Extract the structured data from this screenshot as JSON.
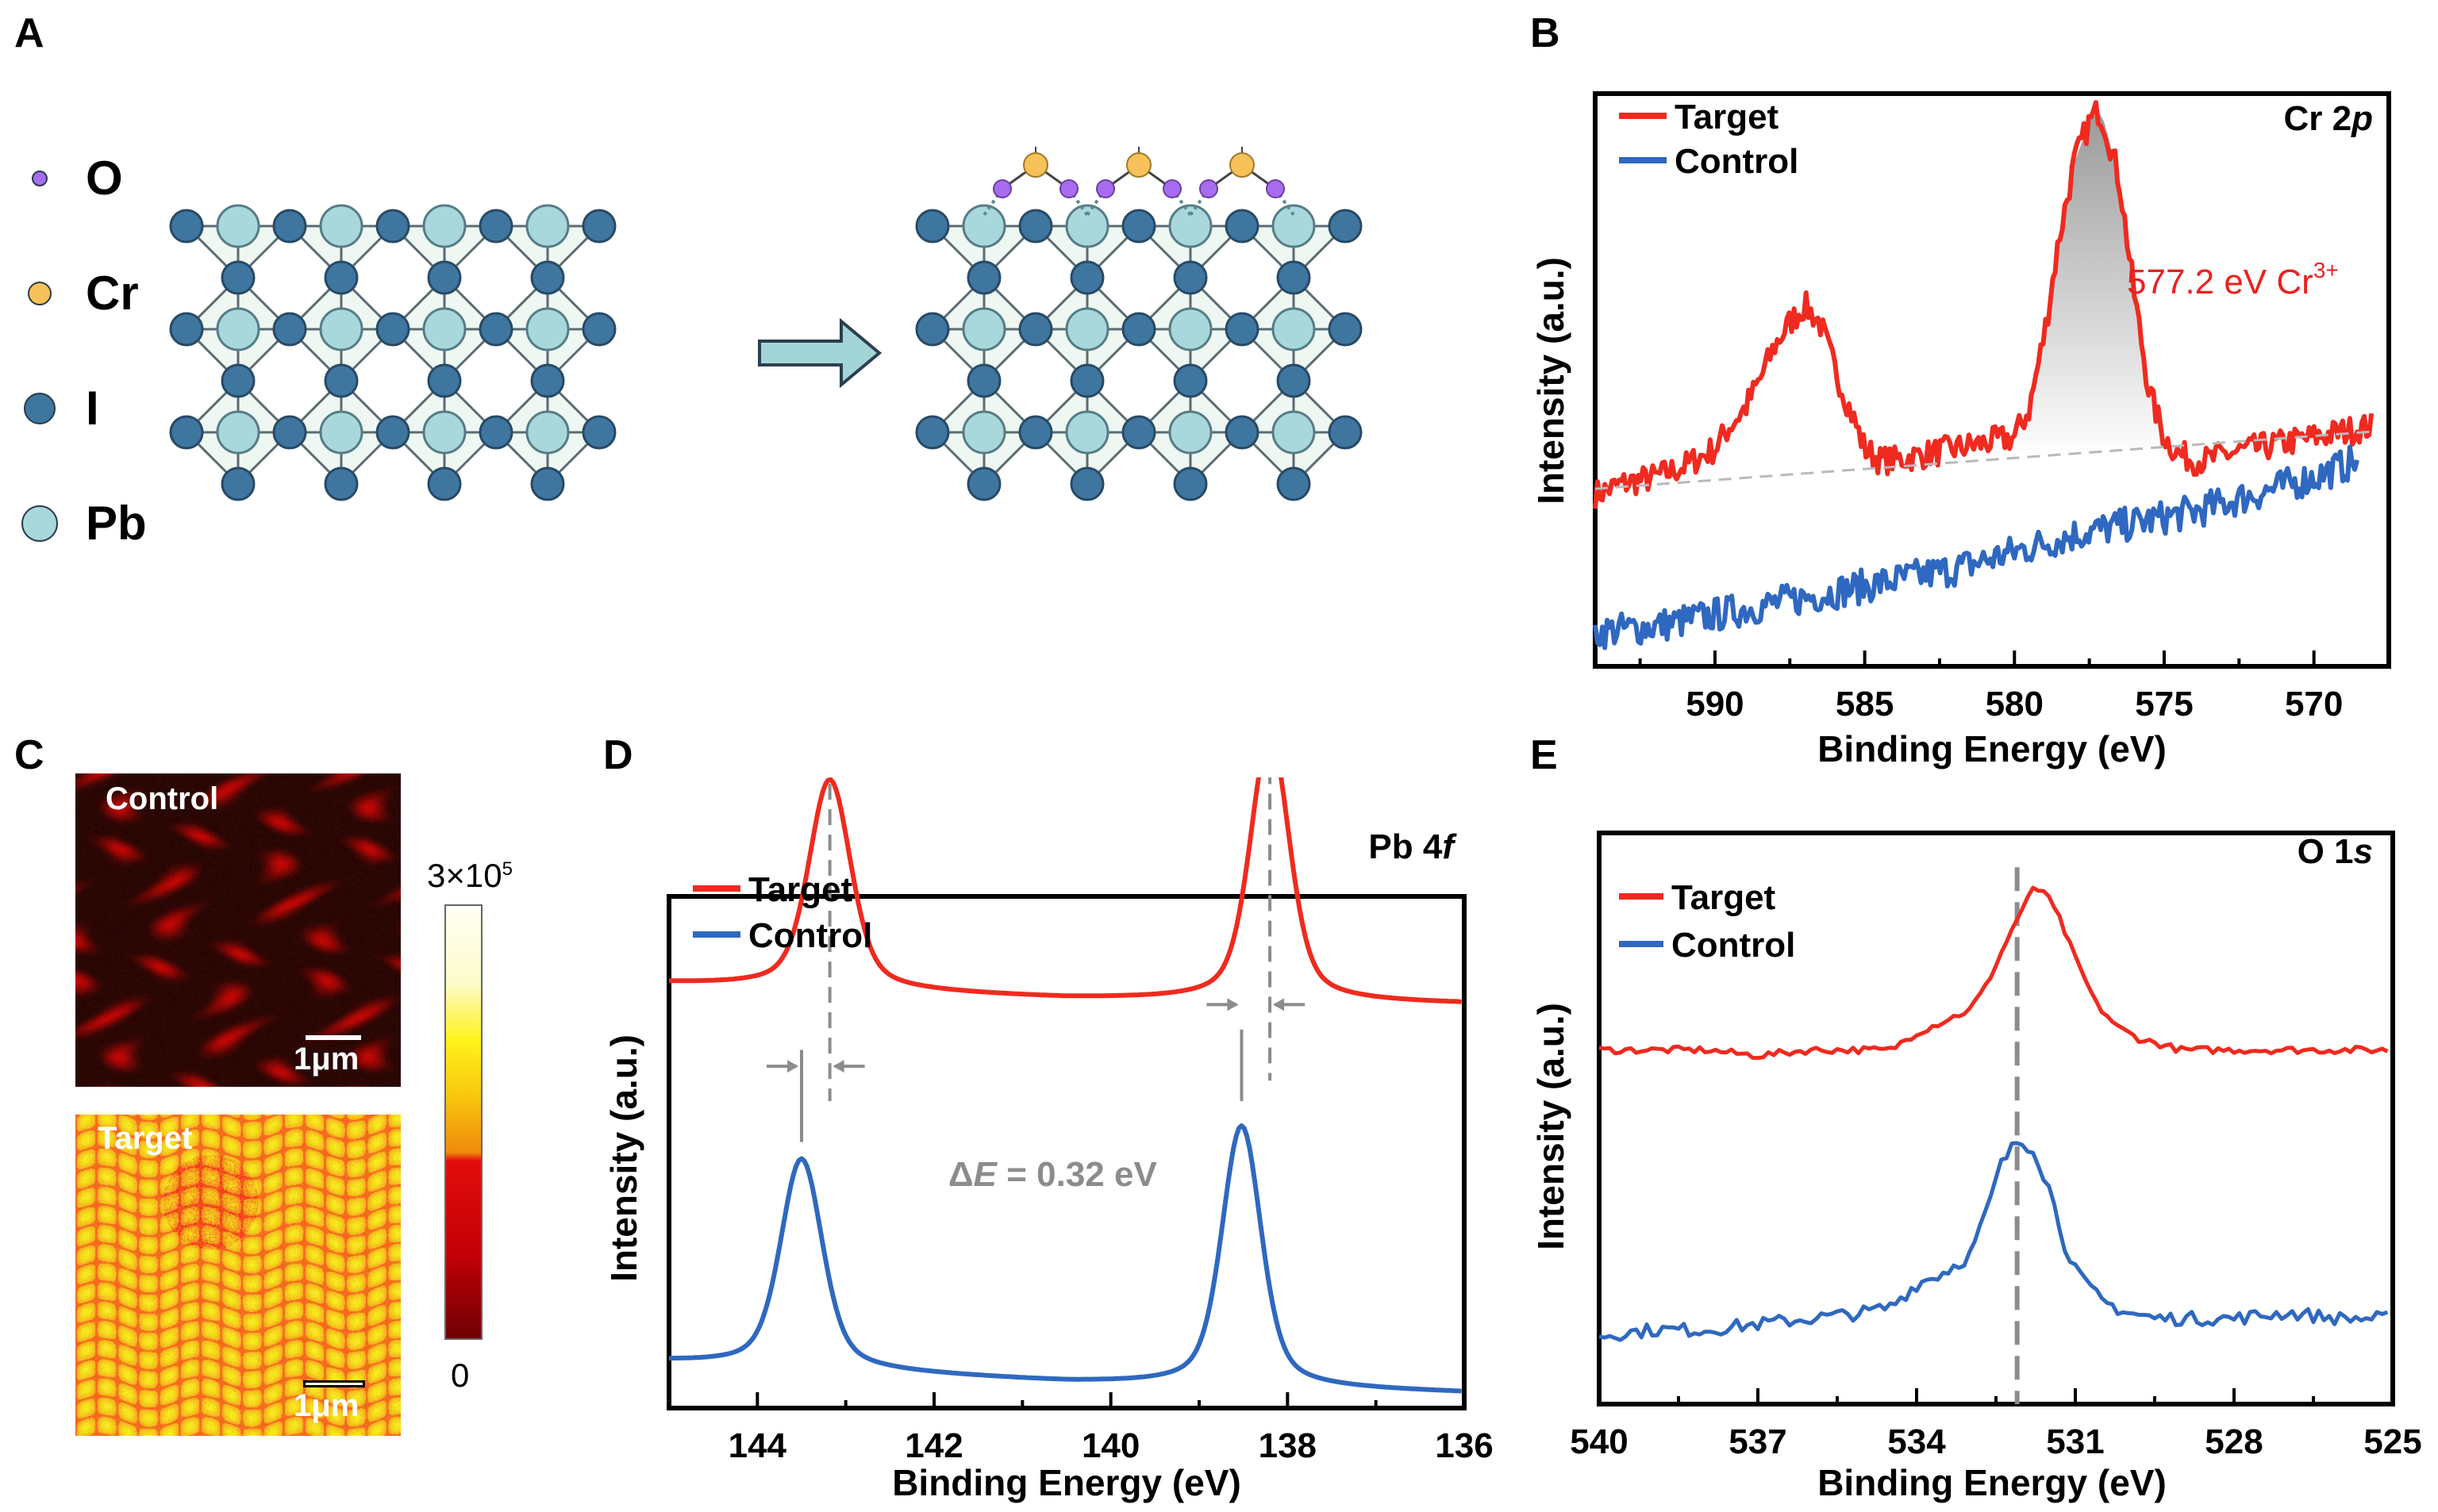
{
  "figure": {
    "panel_labels": {
      "a": "A",
      "b": "B",
      "c": "C",
      "d": "D",
      "e": "E"
    }
  },
  "panel_a": {
    "legend": [
      {
        "symbol": "O",
        "color": "#a86cf0",
        "name": "oxygen-atom"
      },
      {
        "symbol": "Cr",
        "color": "#f7c25a",
        "name": "chromium-atom"
      },
      {
        "symbol": "I",
        "color": "#3f76a0",
        "name": "iodine-atom"
      },
      {
        "symbol": "Pb",
        "color": "#a9d8dc",
        "name": "lead-atom"
      }
    ],
    "arrow_color": "#a3d4d6",
    "lattice_fill": "#eef7f1"
  },
  "panel_c": {
    "control_label": "Control",
    "target_label": "Target",
    "scale_bar": "1μm",
    "colorbar_max_base": "3×10",
    "colorbar_max_exp": "5",
    "colorbar_min": "0"
  },
  "chart_data": [
    {
      "id": "B",
      "type": "line",
      "title": "Cr 2p",
      "title_main": "Cr 2",
      "title_italic": "p",
      "xlabel": "Binding Energy (eV)",
      "ylabel": "Intensity (a.u.)",
      "xlim": [
        594,
        567.5
      ],
      "xticks": [
        590,
        585,
        580,
        575,
        570
      ],
      "minor_step": 2.5,
      "grid": false,
      "legend": "top-left",
      "annotation": {
        "text": "577.2 eV Cr",
        "sup": "3+",
        "x": 577.2,
        "color": "#e8221f"
      },
      "series": [
        {
          "name": "Target",
          "color": "#f02a1f",
          "x": [
            594,
            593,
            592,
            591,
            590,
            589.5,
            589,
            588.5,
            588,
            587.5,
            587,
            586.5,
            586,
            585.5,
            585,
            584.5,
            584,
            583,
            582,
            581,
            580,
            579.5,
            579,
            578.5,
            578,
            577.5,
            577.2,
            577,
            576.5,
            576,
            575.5,
            575,
            574.5,
            574,
            573.5,
            573,
            572,
            571,
            570,
            569,
            568
          ],
          "y": [
            0.3,
            0.32,
            0.33,
            0.35,
            0.38,
            0.42,
            0.45,
            0.5,
            0.56,
            0.6,
            0.63,
            0.6,
            0.52,
            0.45,
            0.38,
            0.36,
            0.36,
            0.37,
            0.38,
            0.39,
            0.4,
            0.45,
            0.58,
            0.75,
            0.88,
            0.95,
            0.97,
            0.95,
            0.85,
            0.65,
            0.48,
            0.4,
            0.37,
            0.36,
            0.36,
            0.37,
            0.38,
            0.39,
            0.4,
            0.41,
            0.42
          ],
          "noise": 0.025
        },
        {
          "name": "Control",
          "color": "#2f68c0",
          "x": [
            594,
            592,
            590,
            588,
            586,
            584,
            582,
            580,
            578,
            576,
            574,
            572,
            570,
            568.5
          ],
          "y": [
            0.06,
            0.07,
            0.09,
            0.11,
            0.13,
            0.15,
            0.17,
            0.2,
            0.23,
            0.25,
            0.27,
            0.3,
            0.33,
            0.36
          ],
          "noise": 0.03
        },
        {
          "name": "Baseline",
          "color": "#b9b9b9",
          "dashed": true,
          "x": [
            594,
            568
          ],
          "y": [
            0.31,
            0.41
          ]
        }
      ]
    },
    {
      "id": "D",
      "type": "line",
      "title": "Pb 4f",
      "title_main": "Pb 4",
      "title_italic": "f",
      "xlabel": "Binding Energy (eV)",
      "ylabel": "Intensity (a.u.)",
      "xlim": [
        145,
        136
      ],
      "xticks": [
        144,
        142,
        140,
        138,
        136
      ],
      "minor_step": 1,
      "grid": false,
      "legend": "top-left",
      "annotation": {
        "text_delta": "Δ",
        "text_e": "E",
        "text_rest": " = 0.32 eV",
        "color": "#8c8c8c"
      },
      "series": [
        {
          "name": "Target",
          "color": "#f02a1f",
          "offset": 0.4,
          "peaks": [
            {
              "center": 143.18,
              "height": 0.41,
              "width": 0.32
            },
            {
              "center": 138.2,
              "height": 0.52,
              "width": 0.3
            }
          ],
          "baseline": [
            0.43,
            0.4,
            0.39
          ]
        },
        {
          "name": "Control",
          "color": "#2f68c0",
          "offset": 0.0,
          "peaks": [
            {
              "center": 143.5,
              "height": 0.41,
              "width": 0.32
            },
            {
              "center": 138.52,
              "height": 0.51,
              "width": 0.3
            }
          ],
          "baseline": [
            0.09,
            0.05,
            0.03
          ]
        }
      ],
      "reference_lines": [
        143.18,
        138.2,
        143.5,
        138.52
      ]
    },
    {
      "id": "E",
      "type": "line",
      "title": "O 1s",
      "title_main": "O 1",
      "title_italic": "s",
      "xlabel": "Binding Energy (eV)",
      "ylabel": "Intensity (a.u.)",
      "xlim": [
        540,
        525
      ],
      "xticks": [
        540,
        537,
        534,
        531,
        528,
        525
      ],
      "minor_step": 1.5,
      "grid": false,
      "legend": "top-left",
      "reference_line": 532.1,
      "series": [
        {
          "name": "Target",
          "color": "#f02a1f",
          "x": [
            540,
            539,
            538,
            537,
            536,
            535,
            534.5,
            534,
            533.5,
            533,
            532.7,
            532.4,
            532.1,
            531.8,
            531.6,
            531.3,
            531,
            530.6,
            530.2,
            529.8,
            529.4,
            529,
            528,
            527,
            526,
            525
          ],
          "y": [
            0.62,
            0.62,
            0.62,
            0.61,
            0.62,
            0.62,
            0.62,
            0.65,
            0.67,
            0.69,
            0.73,
            0.79,
            0.85,
            0.9,
            0.9,
            0.85,
            0.78,
            0.7,
            0.66,
            0.64,
            0.63,
            0.62,
            0.62,
            0.62,
            0.62,
            0.62
          ],
          "noise": 0.006
        },
        {
          "name": "Control",
          "color": "#2f68c0",
          "x": [
            540,
            539,
            538,
            537,
            536,
            535,
            534.5,
            534,
            533.5,
            533,
            532.7,
            532.4,
            532.1,
            531.8,
            531.5,
            531.2,
            530.9,
            530.5,
            530,
            529.5,
            529,
            528,
            527,
            526,
            525
          ],
          "y": [
            0.12,
            0.13,
            0.13,
            0.14,
            0.15,
            0.16,
            0.17,
            0.21,
            0.23,
            0.26,
            0.33,
            0.42,
            0.46,
            0.45,
            0.38,
            0.28,
            0.22,
            0.18,
            0.16,
            0.15,
            0.15,
            0.15,
            0.16,
            0.15,
            0.15
          ],
          "noise": 0.012
        }
      ]
    }
  ]
}
